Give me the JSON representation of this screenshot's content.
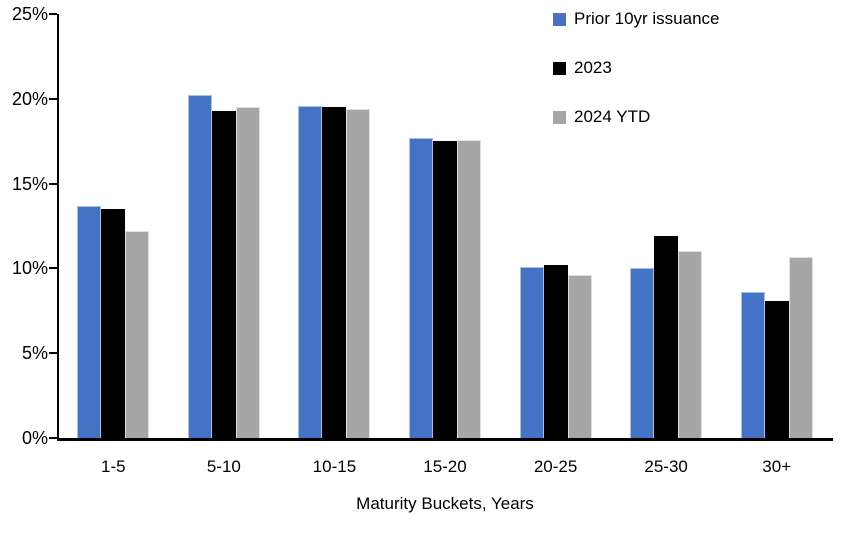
{
  "chart_data": {
    "type": "bar",
    "title": "",
    "xlabel": "Maturity Buckets, Years",
    "ylabel": "",
    "ylim": [
      0,
      25
    ],
    "y_tick_step": 5,
    "y_tick_labels": [
      "0%",
      "5%",
      "10%",
      "15%",
      "20%",
      "25%"
    ],
    "grid": false,
    "legend_position": "top-right",
    "categories": [
      "1-5",
      "5-10",
      "10-15",
      "15-20",
      "20-25",
      "25-30",
      "30+"
    ],
    "series": [
      {
        "name": "Prior 10yr issuance",
        "color": "#4472C4",
        "values": [
          13.7,
          20.2,
          19.6,
          17.7,
          10.1,
          10.0,
          8.6
        ]
      },
      {
        "name": "2023",
        "color": "#000000",
        "values": [
          13.5,
          19.3,
          19.5,
          17.5,
          10.2,
          11.9,
          8.1
        ]
      },
      {
        "name": "2024 YTD",
        "color": "#A6A6A6",
        "values": [
          12.2,
          19.5,
          19.4,
          17.6,
          9.6,
          11.0,
          10.7
        ]
      }
    ]
  }
}
